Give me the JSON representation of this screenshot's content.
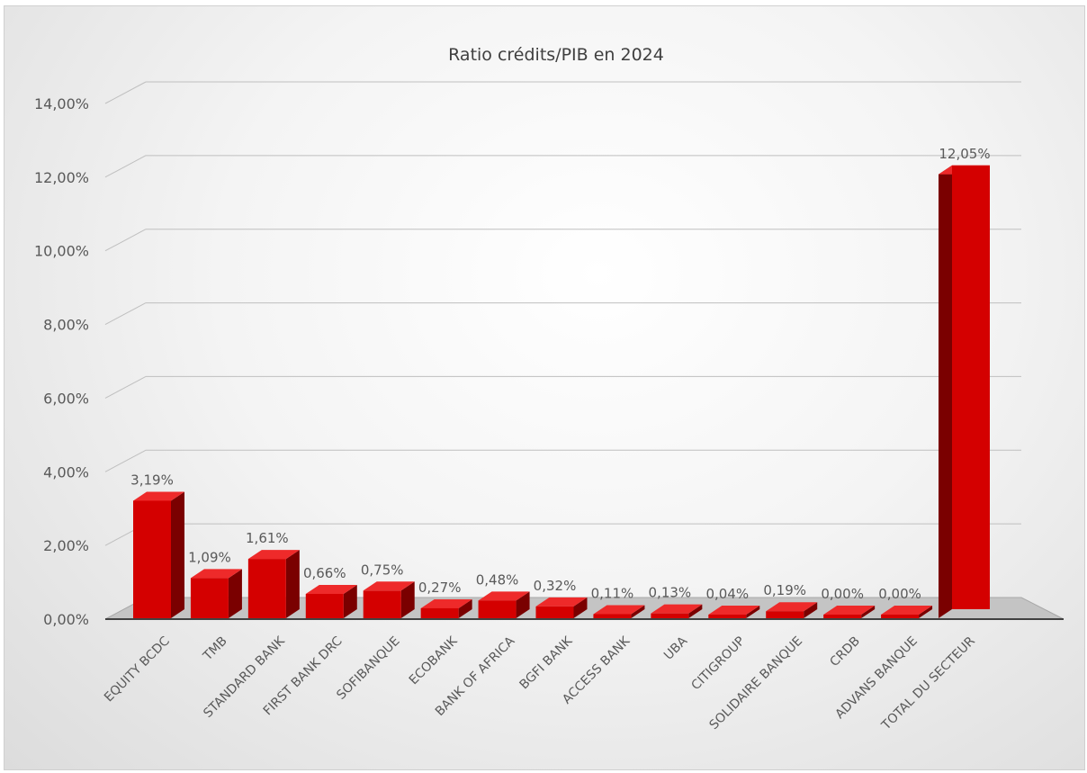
{
  "chart_data": {
    "type": "bar",
    "title": "Ratio crédits/PIB en 2024",
    "categories": [
      "EQUITY BCDC",
      "TMB",
      "STANDARD BANK",
      "FIRST BANK DRC",
      "SOFIBANQUE",
      "ECOBANK",
      "BANK OF AFRICA",
      "BGFI BANK",
      "ACCESS BANK",
      "UBA",
      "CITIGROUP",
      "SOLIDAIRE BANQUE",
      "CRDB",
      "ADVANS BANQUE",
      "TOTAL DU SECTEUR"
    ],
    "series": [
      {
        "values": [
          3.19,
          1.09,
          1.61,
          0.66,
          0.75,
          0.27,
          0.48,
          0.32,
          0.11,
          0.13,
          0.04,
          0.19,
          0.0,
          0.0,
          12.05
        ],
        "labels": [
          "3,19%",
          "1,09%",
          "1,61%",
          "0,66%",
          "0,75%",
          "0,27%",
          "0,48%",
          "0,32%",
          "0,11%",
          "0,13%",
          "0,04%",
          "0,19%",
          "0,00%",
          "0,00%",
          "12,05%"
        ]
      }
    ],
    "ylim": [
      0,
      14
    ],
    "yticks": [
      "0,00%",
      "2,00%",
      "4,00%",
      "6,00%",
      "8,00%",
      "10,00%",
      "12,00%",
      "14,00%"
    ],
    "xlabel": "",
    "ylabel": "",
    "grid": true,
    "legend": "none",
    "style": "3d-column",
    "colors": {
      "bar_front": "#d40000",
      "bar_side": "#7a0000",
      "bar_top": "#ee2a2a",
      "grid": "#bfbfbf",
      "floor": "#c4c4c4"
    }
  }
}
